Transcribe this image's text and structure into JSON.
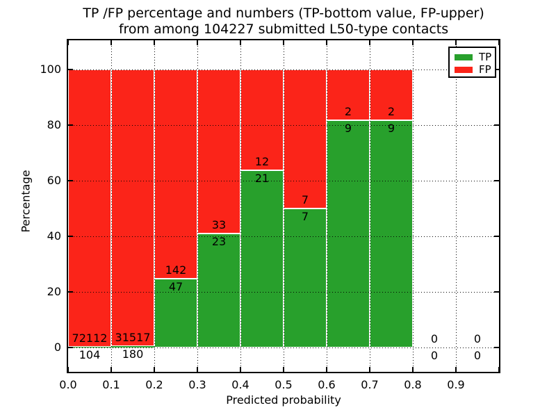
{
  "title": {
    "line1": "TP /FP percentage and numbers (TP-bottom value, FP-upper)",
    "line2": "from among 104227 submitted L50-type contacts"
  },
  "chart_data": {
    "type": "bar",
    "stacked": true,
    "title": "TP /FP percentage and numbers (TP-bottom value, FP-upper)\nfrom among 104227 submitted L50-type contacts",
    "xlabel": "Predicted probability",
    "ylabel": "Percentage",
    "xlim": [
      0.0,
      1.0
    ],
    "ylim": [
      -8.75,
      110.5
    ],
    "x_tick_labels": [
      "0.0",
      "0.1",
      "0.2",
      "0.3",
      "0.4",
      "0.5",
      "0.6",
      "0.7",
      "0.8",
      "0.9"
    ],
    "y_ticks": [
      0,
      20,
      40,
      60,
      80,
      100
    ],
    "grid": {
      "style": "dotted",
      "axes": "both",
      "above_bars": true
    },
    "bin_width": 0.1,
    "bins": [
      {
        "x_range": [
          0.0,
          0.1
        ],
        "tp_count": 104,
        "fp_count": 72112,
        "tp_pct": 0.14,
        "has_bar": true
      },
      {
        "x_range": [
          0.1,
          0.2
        ],
        "tp_count": 180,
        "fp_count": 31517,
        "tp_pct": 0.57,
        "has_bar": true
      },
      {
        "x_range": [
          0.2,
          0.3
        ],
        "tp_count": 47,
        "fp_count": 142,
        "tp_pct": 24.87,
        "has_bar": true
      },
      {
        "x_range": [
          0.3,
          0.4
        ],
        "tp_count": 23,
        "fp_count": 33,
        "tp_pct": 41.07,
        "has_bar": true
      },
      {
        "x_range": [
          0.4,
          0.5
        ],
        "tp_count": 21,
        "fp_count": 12,
        "tp_pct": 63.64,
        "has_bar": true
      },
      {
        "x_range": [
          0.5,
          0.6
        ],
        "tp_count": 7,
        "fp_count": 7,
        "tp_pct": 50.0,
        "has_bar": true
      },
      {
        "x_range": [
          0.6,
          0.7
        ],
        "tp_count": 9,
        "fp_count": 2,
        "tp_pct": 81.82,
        "has_bar": true
      },
      {
        "x_range": [
          0.7,
          0.8
        ],
        "tp_count": 9,
        "fp_count": 2,
        "tp_pct": 81.82,
        "has_bar": true
      },
      {
        "x_range": [
          0.8,
          0.9
        ],
        "tp_count": 0,
        "fp_count": 0,
        "tp_pct": 0,
        "has_bar": false
      },
      {
        "x_range": [
          0.9,
          1.0
        ],
        "tp_count": 0,
        "fp_count": 0,
        "tp_pct": 0,
        "has_bar": false
      }
    ],
    "legend": {
      "position": "upper right",
      "entries": [
        {
          "label": "TP",
          "color": "#28a02c"
        },
        {
          "label": "FP",
          "color": "#fb2419"
        }
      ]
    },
    "colors": {
      "tp": "#28a02c",
      "fp": "#fb2419",
      "bar_edge": "#ffffff",
      "grid": "#000000"
    }
  }
}
